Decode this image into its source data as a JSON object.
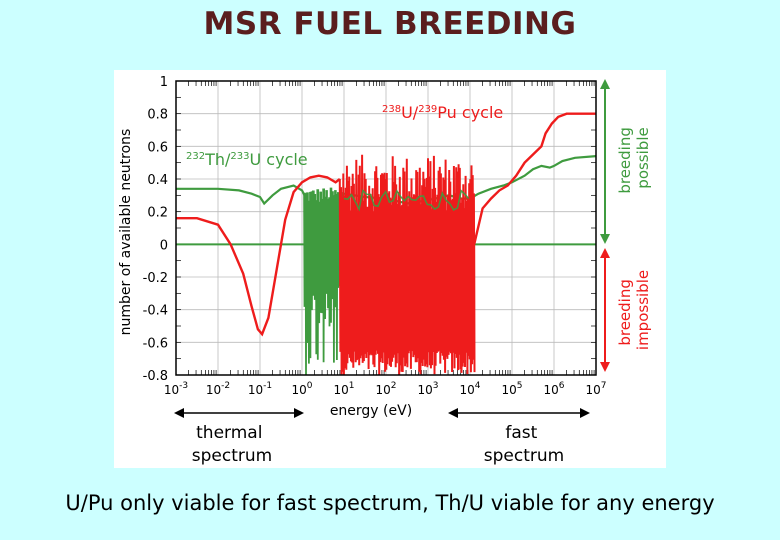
{
  "slide": {
    "title": "MSR FUEL BREEDING",
    "caption": "U/Pu only viable for fast spectrum, Th/U viable for any energy"
  },
  "colors": {
    "background": "#ccffff",
    "title": "#5a1e1e",
    "u_pu": "#ee1c1c",
    "th_u": "#3f9b3f",
    "grid": "#bbbbbb"
  },
  "chart_data": {
    "type": "line",
    "title": "",
    "xlabel": "energy (eV)",
    "ylabel": "number of available neutrons",
    "xscale": "log",
    "xlim_log10": [
      -3,
      7
    ],
    "ylim": [
      -0.8,
      1.0
    ],
    "x_ticks": [
      {
        "base": "10",
        "exp": "-3"
      },
      {
        "base": "10",
        "exp": "-2"
      },
      {
        "base": "10",
        "exp": "-1"
      },
      {
        "base": "10",
        "exp": "0"
      },
      {
        "base": "10",
        "exp": "1"
      },
      {
        "base": "10",
        "exp": "2"
      },
      {
        "base": "10",
        "exp": "3"
      },
      {
        "base": "10",
        "exp": "4"
      },
      {
        "base": "10",
        "exp": "5"
      },
      {
        "base": "10",
        "exp": "6"
      },
      {
        "base": "10",
        "exp": "7"
      }
    ],
    "y_ticks": [
      "1",
      "0.8",
      "0.6",
      "0.4",
      "0.2",
      "0",
      "-0.2",
      "-0.4",
      "-0.6",
      "-0.8"
    ],
    "y_tick_values": [
      1,
      0.8,
      0.6,
      0.4,
      0.2,
      0,
      -0.2,
      -0.4,
      -0.6,
      -0.8
    ],
    "grid": true,
    "reference_line": {
      "y": 0
    },
    "series": [
      {
        "name": "238U/239Pu cycle",
        "label_sup1": "238",
        "label_mid": "U/",
        "label_sup2": "239",
        "label_tail": "Pu cycle",
        "color": "#ee1c1c",
        "x_log10": [
          -3,
          -2.5,
          -2,
          -1.7,
          -1.4,
          -1.2,
          -1.05,
          -0.95,
          -0.8,
          -0.6,
          -0.4,
          -0.2,
          0,
          0.2,
          0.4,
          0.6,
          0.8,
          0.9,
          4.1,
          4.3,
          4.5,
          4.7,
          4.9,
          5.1,
          5.3,
          5.5,
          5.7,
          5.8,
          5.95,
          6.1,
          6.3,
          6.6,
          7
        ],
        "y": [
          0.16,
          0.16,
          0.12,
          0.0,
          -0.18,
          -0.38,
          -0.52,
          -0.55,
          -0.45,
          -0.15,
          0.15,
          0.32,
          0.38,
          0.41,
          0.42,
          0.41,
          0.38,
          0.4,
          0.0,
          0.22,
          0.28,
          0.33,
          0.36,
          0.42,
          0.5,
          0.55,
          0.6,
          0.68,
          0.74,
          0.78,
          0.8,
          0.8,
          0.8
        ]
      },
      {
        "name": "232Th/233U cycle",
        "label_sup1": "232",
        "label_mid": "Th/",
        "label_sup2": "233",
        "label_tail": "U cycle",
        "color": "#3f9b3f",
        "x_log10": [
          -3,
          -2,
          -1.5,
          -1.2,
          -1.0,
          -0.9,
          -0.7,
          -0.5,
          -0.2,
          0,
          0.1,
          0.2,
          0.8,
          1.0,
          1.5,
          2.0,
          2.5,
          3.0,
          3.5,
          3.8,
          4.0,
          4.2,
          4.5,
          4.8,
          5.0,
          5.3,
          5.5,
          5.7,
          5.9,
          6.0,
          6.2,
          6.5,
          7
        ],
        "y": [
          0.34,
          0.34,
          0.33,
          0.31,
          0.29,
          0.25,
          0.3,
          0.34,
          0.36,
          0.33,
          0.28,
          0.2,
          0.3,
          0.31,
          0.29,
          0.28,
          0.25,
          0.27,
          0.3,
          0.28,
          0.28,
          0.31,
          0.34,
          0.36,
          0.38,
          0.42,
          0.46,
          0.48,
          0.47,
          0.48,
          0.51,
          0.53,
          0.54
        ]
      }
    ],
    "resonance_region_log10": [
      0.9,
      4.1
    ],
    "annotations": {
      "breeding_possible": "breeding possible",
      "breeding_possible_line1": "breeding",
      "breeding_possible_line2": "possible",
      "breeding_impossible_line1": "breeding",
      "breeding_impossible_line2": "impossible",
      "thermal_line1": "thermal",
      "thermal_line2": "spectrum",
      "fast_line1": "fast",
      "fast_line2": "spectrum"
    }
  }
}
